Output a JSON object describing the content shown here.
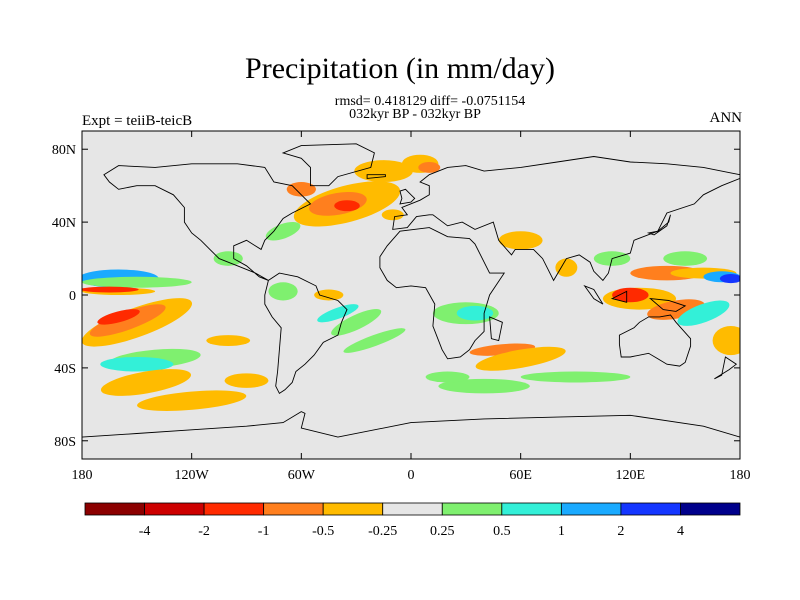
{
  "chart_data": {
    "type": "heatmap",
    "title": "Precipitation (in mm/day)",
    "subtitle_stats": "rmsd= 0.418129 diff= -0.0751154",
    "subtitle_period": "032kyr BP - 032kyr BP",
    "left_label": "Expt = teiiB-teicB",
    "right_label": "ANN",
    "x_ticks": [
      "180",
      "120W",
      "60W",
      "0",
      "60E",
      "120E",
      "180"
    ],
    "y_ticks": [
      "80N",
      "40N",
      "0",
      "40S",
      "80S"
    ],
    "xlim": [
      -180,
      180
    ],
    "ylim": [
      -90,
      90
    ],
    "colorbar": {
      "levels": [
        "-4",
        "-2",
        "-1",
        "-0.5",
        "-0.25",
        "0.25",
        "0.5",
        "1",
        "2",
        "4"
      ],
      "colors": [
        "#8b0000",
        "#cd0000",
        "#ff2a00",
        "#ff7f1e",
        "#ffbb00",
        "#e6e6e6",
        "#7ff06f",
        "#33f0d8",
        "#1aaaff",
        "#1436ff",
        "#00008b"
      ]
    },
    "background_value_color": "#e6e6e6"
  }
}
